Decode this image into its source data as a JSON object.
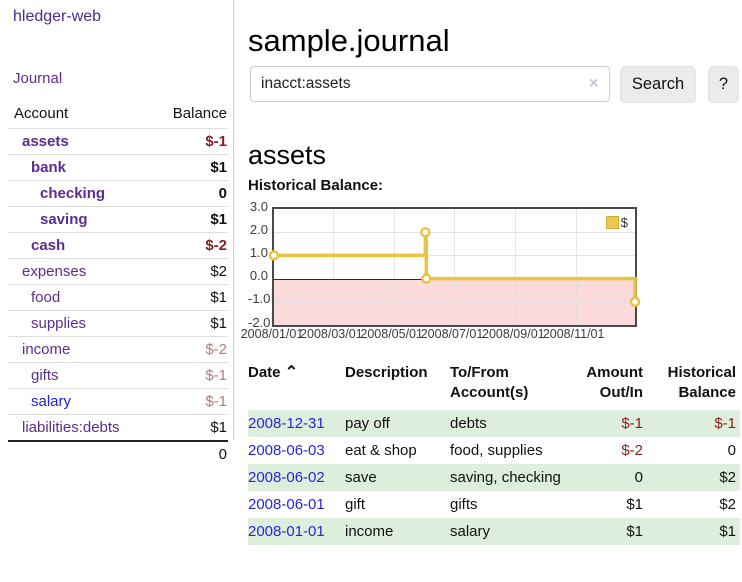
{
  "app": {
    "logo": "hledger-web",
    "nav_journal": "Journal"
  },
  "sidebar": {
    "accounts_header": {
      "account": "Account",
      "balance": "Balance"
    },
    "accounts": [
      {
        "name": "assets",
        "indent": 1,
        "bold": true,
        "balance": "$-1",
        "balance_style": "neg-strong"
      },
      {
        "name": "bank",
        "indent": 2,
        "bold": true,
        "balance": "$1",
        "balance_style": "pos"
      },
      {
        "name": "checking",
        "indent": 3,
        "bold": true,
        "balance": "0",
        "balance_style": "pos"
      },
      {
        "name": "saving",
        "indent": 3,
        "bold": true,
        "balance": "$1",
        "balance_style": "pos"
      },
      {
        "name": "cash",
        "indent": 2,
        "bold": true,
        "balance": "$-2",
        "balance_style": "neg-strong"
      },
      {
        "name": "expenses",
        "indent": 1,
        "bold": false,
        "balance": "$2",
        "balance_style": "pos"
      },
      {
        "name": "food",
        "indent": 2,
        "bold": false,
        "balance": "$1",
        "balance_style": "pos"
      },
      {
        "name": "supplies",
        "indent": 2,
        "bold": false,
        "balance": "$1",
        "balance_style": "pos"
      },
      {
        "name": "income",
        "indent": 1,
        "bold": false,
        "balance": "$-2",
        "balance_style": "neg-soft"
      },
      {
        "name": "gifts",
        "indent": 2,
        "bold": false,
        "balance": "$-1",
        "balance_style": "neg-soft"
      },
      {
        "name": "salary",
        "indent": 2,
        "bold": false,
        "link_color": "blue",
        "balance": "$-1",
        "balance_style": "neg-soft"
      },
      {
        "name": "liabilities:debts",
        "indent": 1,
        "bold": false,
        "balance": "$1",
        "balance_style": "pos"
      }
    ],
    "total": "0"
  },
  "header": {
    "title": "sample.journal"
  },
  "search": {
    "value": "inacct:assets",
    "clear_icon": "×",
    "button": "Search",
    "help_button": "?"
  },
  "account_page": {
    "title": "assets",
    "chart_label": "Historical Balance:"
  },
  "chart_data": {
    "type": "line",
    "title": "Historical Balance",
    "step": true,
    "legend": [
      {
        "label": "$",
        "color": "#ecca52"
      }
    ],
    "legend_position": "top-right",
    "grid": true,
    "ylim": [
      -2,
      3
    ],
    "y_ticks": [
      3,
      2,
      1,
      0,
      -1,
      -2
    ],
    "y_tick_labels": [
      "3.0",
      "2.0",
      "1.0",
      "0.0",
      "-1.0",
      "-2.0"
    ],
    "x_tick_labels": [
      "2008/01/01",
      "2008/03/01",
      "2008/05/01",
      "2008/07/01",
      "2008/09/01",
      "2008/11/01"
    ],
    "x_tick_days": [
      0,
      60,
      121,
      182,
      244,
      305
    ],
    "x_range_days": 365,
    "points": [
      {
        "date": "2008-01-01",
        "day": 0,
        "value": 1
      },
      {
        "date": "2008-06-02",
        "day": 153,
        "value": 2
      },
      {
        "date": "2008-06-03",
        "day": 154,
        "value": 0
      },
      {
        "date": "2008-12-31",
        "day": 365,
        "value": -1
      }
    ],
    "line_color": "#e9c345",
    "marker_fill": "#ffffff",
    "negative_region_color": "#fbdada",
    "zero_line_color": "#8b0000"
  },
  "register": {
    "columns": [
      "Date",
      "Description",
      "To/From Account(s)",
      "Amount Out/In",
      "Historical Balance"
    ],
    "sort_icon": "⌃",
    "rows": [
      {
        "date": "2008-12-31",
        "description": "pay off",
        "accounts": "debts",
        "amount": "$-1",
        "amount_neg": true,
        "balance": "$-1",
        "balance_neg": true
      },
      {
        "date": "2008-06-03",
        "description": "eat & shop",
        "accounts": "food, supplies",
        "amount": "$-2",
        "amount_neg": true,
        "balance": "0",
        "balance_neg": false
      },
      {
        "date": "2008-06-02",
        "description": "save",
        "accounts": "saving, checking",
        "amount": "0",
        "amount_neg": false,
        "balance": "$2",
        "balance_neg": false
      },
      {
        "date": "2008-06-01",
        "description": "gift",
        "accounts": "gifts",
        "amount": "$1",
        "amount_neg": false,
        "balance": "$2",
        "balance_neg": false
      },
      {
        "date": "2008-01-01",
        "description": "income",
        "accounts": "salary",
        "amount": "$1",
        "amount_neg": false,
        "balance": "$1",
        "balance_neg": false
      }
    ]
  },
  "colors": {
    "link_purple": "#5b2d91",
    "link_blue": "#2323d3",
    "negative_strong": "#8b1c1c",
    "negative_soft": "#b97a7a",
    "row_stripe_green": "#ddeedd",
    "chart_line": "#e9c345"
  }
}
